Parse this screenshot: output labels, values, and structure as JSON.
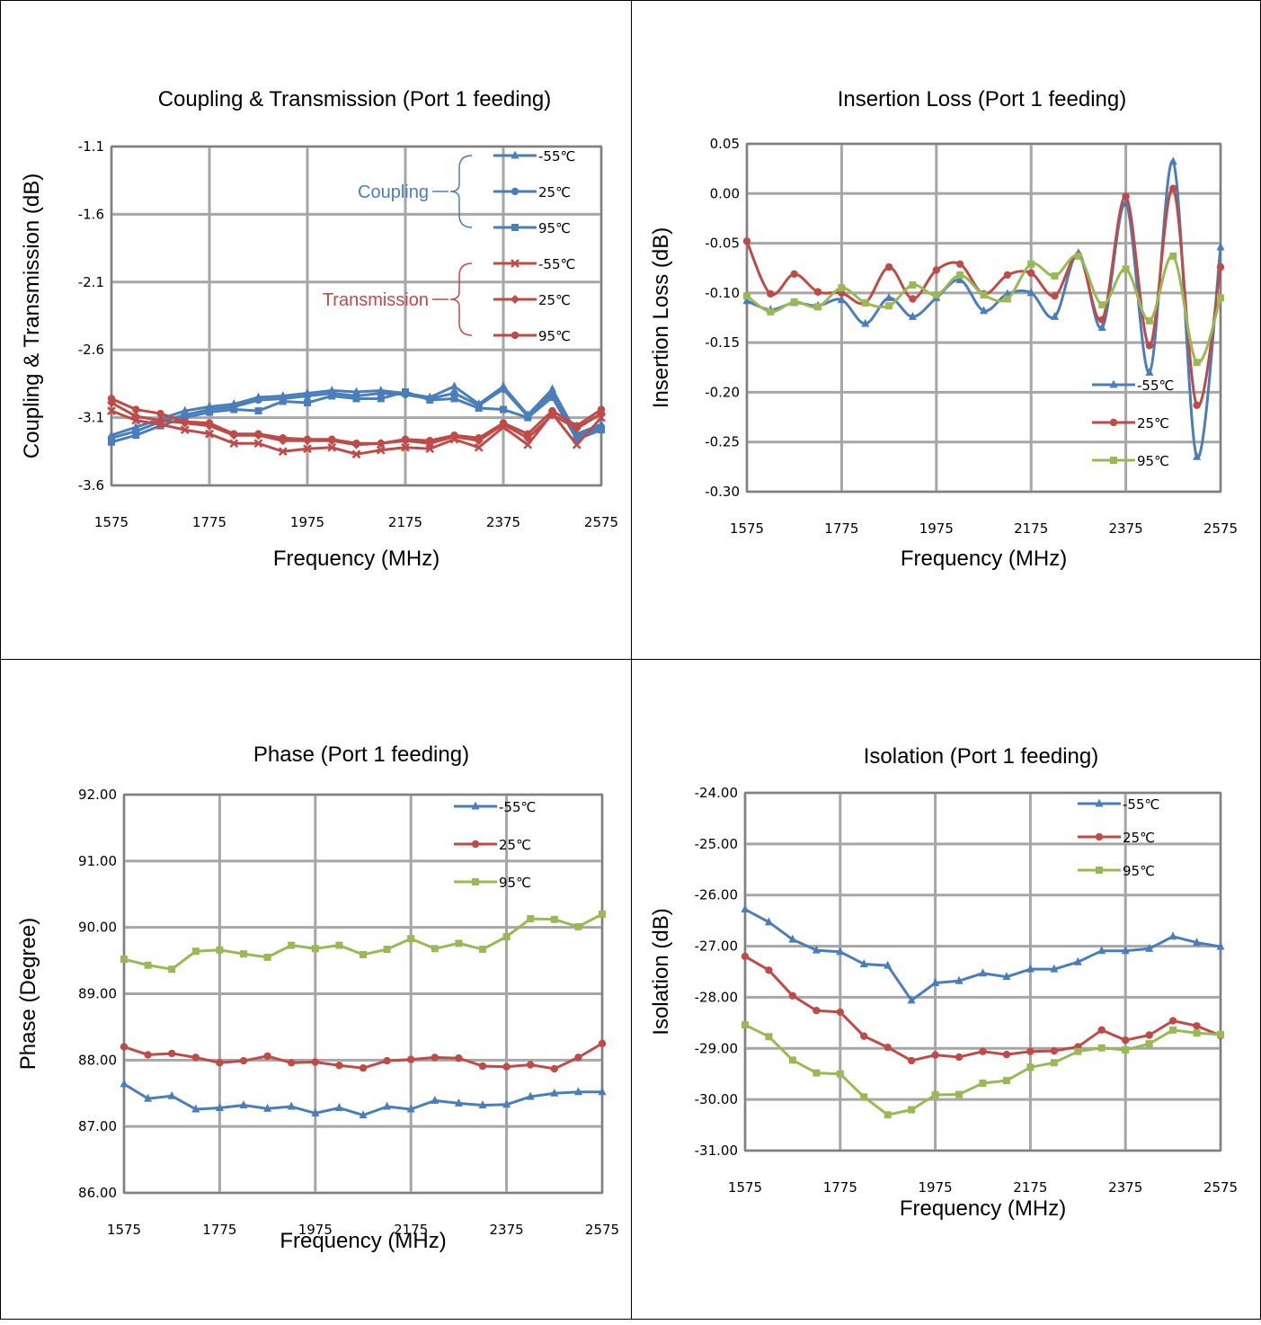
{
  "colors": {
    "blue": "#4A7EBB",
    "red": "#BE4B48",
    "green": "#98B954",
    "grid": "#A6A6A6",
    "frame": "#000000"
  },
  "chart_data": [
    {
      "type": "line",
      "title": "Coupling & Transmission (Port 1 feeding)",
      "xlabel": "Frequency (MHz)",
      "ylabel": "Coupling & Transmission (dB)",
      "xlim": [
        1575,
        2575
      ],
      "ylim": [
        -3.6,
        -1.1
      ],
      "xticks": [
        "1575",
        "1775",
        "1975",
        "2175",
        "2375",
        "2575"
      ],
      "yticks": [
        "-1.1",
        "-1.6",
        "-2.1",
        "-2.6",
        "-3.1",
        "-3.6"
      ],
      "grid": true,
      "legend_position": "top-right",
      "legend_groups": [
        {
          "label": "Coupling",
          "color": "#4A7EBB"
        },
        {
          "label": "Transmission",
          "color": "#BE4B48"
        }
      ],
      "x": [
        1575,
        1625,
        1675,
        1725,
        1775,
        1825,
        1875,
        1925,
        1975,
        2025,
        2075,
        2125,
        2175,
        2225,
        2275,
        2325,
        2375,
        2425,
        2475,
        2525,
        2575
      ],
      "series": [
        {
          "name": "-55℃",
          "color": "#4A7EBB",
          "marker": "triangle",
          "values": [
            -3.23,
            -3.17,
            -3.11,
            -3.05,
            -3.02,
            -3.0,
            -2.95,
            -2.94,
            -2.92,
            -2.9,
            -2.91,
            -2.9,
            -2.92,
            -2.95,
            -2.87,
            -3.0,
            -2.87,
            -3.08,
            -2.89,
            -3.22,
            -3.15
          ]
        },
        {
          "name": "25℃",
          "color": "#4A7EBB",
          "marker": "circle",
          "values": [
            -3.25,
            -3.2,
            -3.13,
            -3.08,
            -3.04,
            -3.02,
            -2.97,
            -2.96,
            -2.94,
            -2.92,
            -2.94,
            -2.92,
            -2.93,
            -2.96,
            -2.92,
            -3.01,
            -2.89,
            -3.09,
            -2.92,
            -3.24,
            -3.17
          ]
        },
        {
          "name": "95℃",
          "color": "#4A7EBB",
          "marker": "square",
          "values": [
            -3.28,
            -3.23,
            -3.16,
            -3.1,
            -3.06,
            -3.04,
            -3.05,
            -2.98,
            -2.99,
            -2.94,
            -2.96,
            -2.96,
            -2.91,
            -2.97,
            -2.96,
            -3.03,
            -3.04,
            -3.1,
            -2.95,
            -3.26,
            -3.19
          ]
        },
        {
          "name": "-55℃",
          "color": "#BE4B48",
          "marker": "x",
          "values": [
            -3.05,
            -3.12,
            -3.15,
            -3.19,
            -3.22,
            -3.29,
            -3.29,
            -3.35,
            -3.33,
            -3.32,
            -3.37,
            -3.34,
            -3.32,
            -3.33,
            -3.26,
            -3.32,
            -3.17,
            -3.3,
            -3.07,
            -3.3,
            -3.1
          ]
        },
        {
          "name": "25℃",
          "color": "#BE4B48",
          "marker": "diamond",
          "values": [
            -2.99,
            -3.09,
            -3.12,
            -3.14,
            -3.16,
            -3.23,
            -3.23,
            -3.27,
            -3.27,
            -3.27,
            -3.3,
            -3.29,
            -3.27,
            -3.29,
            -3.24,
            -3.27,
            -3.15,
            -3.25,
            -3.08,
            -3.18,
            -3.07
          ]
        },
        {
          "name": "95℃",
          "color": "#BE4B48",
          "marker": "circle",
          "values": [
            -2.96,
            -3.04,
            -3.07,
            -3.13,
            -3.14,
            -3.22,
            -3.22,
            -3.25,
            -3.26,
            -3.26,
            -3.29,
            -3.29,
            -3.26,
            -3.27,
            -3.23,
            -3.25,
            -3.14,
            -3.22,
            -3.05,
            -3.16,
            -3.04
          ]
        }
      ]
    },
    {
      "type": "line",
      "title": "Insertion Loss (Port 1 feeding)",
      "xlabel": "Frequency (MHz)",
      "ylabel": "Insertion Loss (dB)",
      "xlim": [
        1575,
        2575
      ],
      "ylim": [
        -0.3,
        0.05
      ],
      "xticks": [
        "1575",
        "1775",
        "1975",
        "2175",
        "2375",
        "2575"
      ],
      "yticks": [
        "0.05",
        "0.00",
        "-0.05",
        "-0.10",
        "-0.15",
        "-0.20",
        "-0.25",
        "-0.30"
      ],
      "grid": true,
      "legend_position": "bottom-right",
      "x": [
        1575,
        1625,
        1675,
        1725,
        1775,
        1825,
        1875,
        1925,
        1975,
        2025,
        2075,
        2125,
        2175,
        2225,
        2275,
        2325,
        2375,
        2425,
        2475,
        2525,
        2575
      ],
      "series": [
        {
          "name": "-55℃",
          "color": "#4A7EBB",
          "marker": "triangle",
          "values": [
            -0.108,
            -0.117,
            -0.11,
            -0.113,
            -0.107,
            -0.131,
            -0.105,
            -0.124,
            -0.105,
            -0.087,
            -0.118,
            -0.101,
            -0.1,
            -0.124,
            -0.06,
            -0.135,
            -0.01,
            -0.18,
            0.032,
            -0.265,
            -0.054
          ]
        },
        {
          "name": "25℃",
          "color": "#BE4B48",
          "marker": "circle",
          "values": [
            -0.048,
            -0.101,
            -0.081,
            -0.099,
            -0.1,
            -0.11,
            -0.074,
            -0.106,
            -0.077,
            -0.071,
            -0.101,
            -0.082,
            -0.08,
            -0.103,
            -0.062,
            -0.127,
            -0.003,
            -0.153,
            0.005,
            -0.213,
            -0.074
          ]
        },
        {
          "name": "95℃",
          "color": "#98B954",
          "marker": "square",
          "values": [
            -0.103,
            -0.119,
            -0.109,
            -0.114,
            -0.095,
            -0.11,
            -0.113,
            -0.092,
            -0.102,
            -0.082,
            -0.102,
            -0.106,
            -0.071,
            -0.083,
            -0.063,
            -0.112,
            -0.076,
            -0.128,
            -0.063,
            -0.17,
            -0.105
          ]
        }
      ]
    },
    {
      "type": "line",
      "title": "Phase (Port 1 feeding)",
      "xlabel": "Frequency (MHz)",
      "ylabel": "Phase (Degree)",
      "xlim": [
        1575,
        2575
      ],
      "ylim": [
        86,
        92
      ],
      "xticks": [
        "1575",
        "1775",
        "1975",
        "2175",
        "2375",
        "2575"
      ],
      "yticks": [
        "92.00",
        "91.00",
        "90.00",
        "89.00",
        "88.00",
        "87.00",
        "86.00"
      ],
      "grid": true,
      "legend_position": "top-right",
      "x": [
        1575,
        1625,
        1675,
        1725,
        1775,
        1825,
        1875,
        1925,
        1975,
        2025,
        2075,
        2125,
        2175,
        2225,
        2275,
        2325,
        2375,
        2425,
        2475,
        2525,
        2575
      ],
      "series": [
        {
          "name": "-55℃",
          "color": "#4A7EBB",
          "marker": "triangle",
          "values": [
            87.64,
            87.42,
            87.46,
            87.26,
            87.28,
            87.32,
            87.27,
            87.3,
            87.2,
            87.28,
            87.17,
            87.3,
            87.26,
            87.39,
            87.35,
            87.32,
            87.33,
            87.45,
            87.5,
            87.52,
            87.52
          ]
        },
        {
          "name": "25℃",
          "color": "#BE4B48",
          "marker": "circle",
          "values": [
            88.2,
            88.08,
            88.1,
            88.04,
            87.96,
            87.99,
            88.06,
            87.96,
            87.97,
            87.92,
            87.88,
            87.99,
            88.01,
            88.04,
            88.03,
            87.91,
            87.9,
            87.93,
            87.87,
            88.04,
            88.25
          ]
        },
        {
          "name": "95℃",
          "color": "#98B954",
          "marker": "square",
          "values": [
            89.52,
            89.43,
            89.37,
            89.64,
            89.66,
            89.6,
            89.55,
            89.73,
            89.68,
            89.73,
            89.59,
            89.67,
            89.83,
            89.68,
            89.76,
            89.67,
            89.86,
            90.13,
            90.12,
            90.01,
            90.2
          ]
        }
      ]
    },
    {
      "type": "line",
      "title": "Isolation (Port 1 feeding)",
      "xlabel": "Frequency (MHz)",
      "ylabel": "Isolation (dB)",
      "xlim": [
        1575,
        2575
      ],
      "ylim": [
        -31,
        -24
      ],
      "xticks": [
        "1575",
        "1775",
        "1975",
        "2175",
        "2375",
        "2575"
      ],
      "yticks": [
        "-24.00",
        "-25.00",
        "-26.00",
        "-27.00",
        "-28.00",
        "-29.00",
        "-30.00",
        "-31.00"
      ],
      "grid": true,
      "legend_position": "top-right",
      "x": [
        1575,
        1625,
        1675,
        1725,
        1775,
        1825,
        1875,
        1925,
        1975,
        2025,
        2075,
        2125,
        2175,
        2225,
        2275,
        2325,
        2375,
        2425,
        2475,
        2525,
        2575
      ],
      "series": [
        {
          "name": "-55℃",
          "color": "#4A7EBB",
          "marker": "triangle",
          "values": [
            -26.28,
            -26.53,
            -26.87,
            -27.08,
            -27.11,
            -27.35,
            -27.38,
            -28.06,
            -27.72,
            -27.68,
            -27.53,
            -27.6,
            -27.45,
            -27.45,
            -27.31,
            -27.09,
            -27.09,
            -27.05,
            -26.81,
            -26.93,
            -27.01
          ]
        },
        {
          "name": "25℃",
          "color": "#BE4B48",
          "marker": "circle",
          "values": [
            -27.2,
            -27.47,
            -27.97,
            -28.26,
            -28.29,
            -28.76,
            -28.98,
            -29.24,
            -29.13,
            -29.17,
            -29.06,
            -29.12,
            -29.06,
            -29.05,
            -28.97,
            -28.64,
            -28.84,
            -28.74,
            -28.46,
            -28.56,
            -28.75
          ]
        },
        {
          "name": "95℃",
          "color": "#98B954",
          "marker": "square",
          "values": [
            -28.54,
            -28.77,
            -29.23,
            -29.48,
            -29.5,
            -29.95,
            -30.3,
            -30.2,
            -29.91,
            -29.9,
            -29.68,
            -29.63,
            -29.37,
            -29.28,
            -29.06,
            -28.99,
            -29.03,
            -28.91,
            -28.64,
            -28.7,
            -28.73
          ]
        }
      ]
    }
  ]
}
